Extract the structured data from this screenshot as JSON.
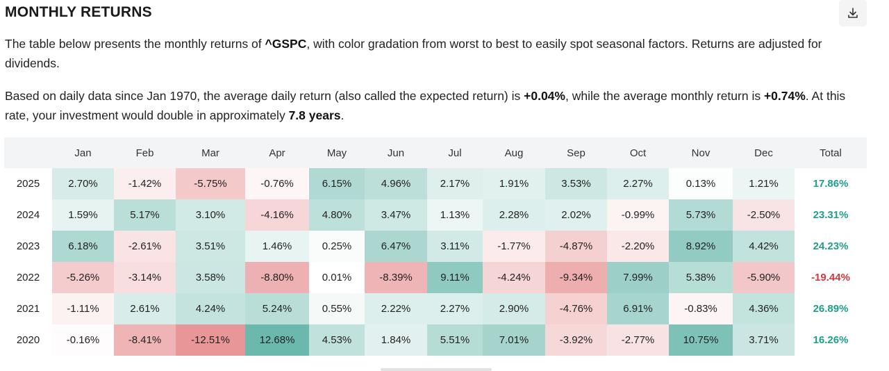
{
  "header": {
    "title": "MONTHLY RETURNS",
    "download_icon": "download-icon"
  },
  "intro": {
    "p1_a": "The table below presents the monthly returns of ",
    "ticker": "^GSPC",
    "p1_b": ", with color gradation from worst to best to easily spot seasonal factors. Returns are adjusted for dividends.",
    "p2_a": "Based on daily data since Jan 1970, the average daily return (also called the expected return) is ",
    "avg_daily": "+0.04%",
    "p2_b": ", while the average monthly return is ",
    "avg_monthly": "+0.74%",
    "p2_c": ". At this rate, your investment would double in approximately ",
    "double_years": "7.8 years",
    "p2_d": "."
  },
  "colors": {
    "positive_total": "#1f9e8a",
    "negative_total": "#d0393e",
    "header_bg": "#f3f4f5"
  },
  "table": {
    "columns": [
      "",
      "Jan",
      "Feb",
      "Mar",
      "Apr",
      "May",
      "Jun",
      "Jul",
      "Aug",
      "Sep",
      "Oct",
      "Nov",
      "Dec",
      "Total"
    ],
    "rows": [
      {
        "year": "2025",
        "months": [
          "2.70%",
          "-1.42%",
          "-5.75%",
          "-0.76%",
          "6.15%",
          "4.96%",
          "2.17%",
          "1.91%",
          "3.53%",
          "2.27%",
          "0.13%",
          "1.21%"
        ],
        "total": "17.86%"
      },
      {
        "year": "2024",
        "months": [
          "1.59%",
          "5.17%",
          "3.10%",
          "-4.16%",
          "4.80%",
          "3.47%",
          "1.13%",
          "2.28%",
          "2.02%",
          "-0.99%",
          "5.73%",
          "-2.50%"
        ],
        "total": "23.31%"
      },
      {
        "year": "2023",
        "months": [
          "6.18%",
          "-2.61%",
          "3.51%",
          "1.46%",
          "0.25%",
          "6.47%",
          "3.11%",
          "-1.77%",
          "-4.87%",
          "-2.20%",
          "8.92%",
          "4.42%"
        ],
        "total": "24.23%"
      },
      {
        "year": "2022",
        "months": [
          "-5.26%",
          "-3.14%",
          "3.58%",
          "-8.80%",
          "0.01%",
          "-8.39%",
          "9.11%",
          "-4.24%",
          "-9.34%",
          "7.99%",
          "5.38%",
          "-5.90%"
        ],
        "total": "-19.44%"
      },
      {
        "year": "2021",
        "months": [
          "-1.11%",
          "2.61%",
          "4.24%",
          "5.24%",
          "0.55%",
          "2.22%",
          "2.27%",
          "2.90%",
          "-4.76%",
          "6.91%",
          "-0.83%",
          "4.36%"
        ],
        "total": "26.89%"
      },
      {
        "year": "2020",
        "months": [
          "-0.16%",
          "-8.41%",
          "-12.51%",
          "12.68%",
          "4.53%",
          "1.84%",
          "5.51%",
          "7.01%",
          "-3.92%",
          "-2.77%",
          "10.75%",
          "3.71%"
        ],
        "total": "16.26%"
      }
    ]
  }
}
